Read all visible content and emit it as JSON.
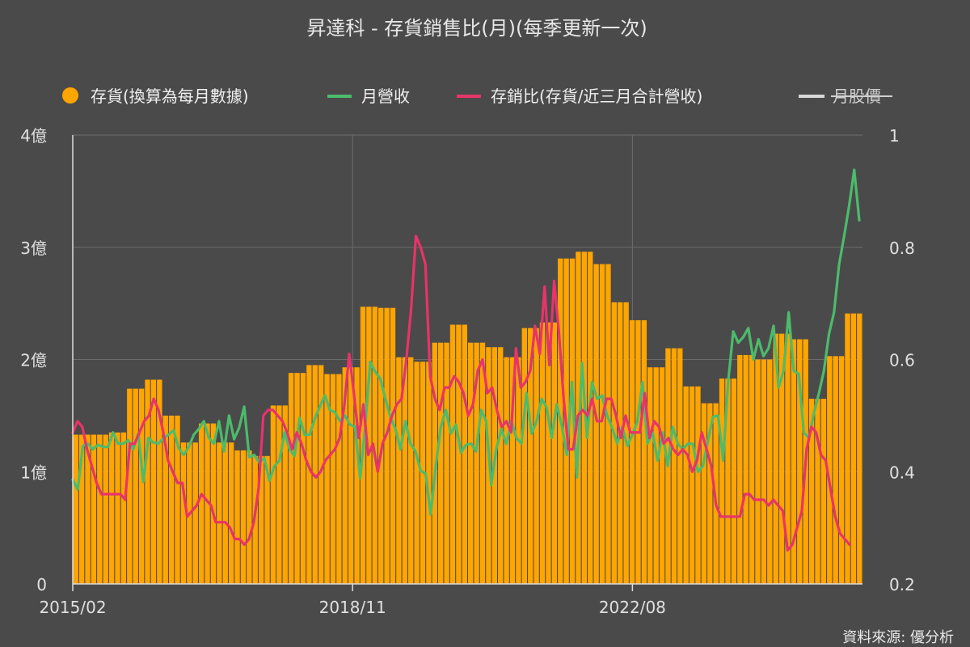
{
  "chart_data": {
    "type": "bar+line",
    "title": "昇達科 - 存貨銷售比(月)(每季更新一次)",
    "source": "資料來源: 優分析",
    "legend": {
      "position": "top",
      "items": [
        {
          "label": "存貨(換算為每月數據)",
          "color": "#ffa500",
          "marker": "dot"
        },
        {
          "label": "月營收",
          "color": "#4cbb6c",
          "marker": "line"
        },
        {
          "label": "存銷比(存貨/近三月合計營收)",
          "color": "#e8336b",
          "marker": "line"
        },
        {
          "label": "月股價",
          "color": "#d8d8d8",
          "marker": "line",
          "hidden": true
        }
      ]
    },
    "x_start": "2015/02",
    "x_end": "2025/09",
    "x_tick_labels": [
      "2015/02",
      "2018/11",
      "2022/08"
    ],
    "y_left": {
      "ticks": [
        0,
        1,
        2,
        3,
        4
      ],
      "tick_labels": [
        "0",
        "1億",
        "2億",
        "3億",
        "4億"
      ],
      "lim": [
        0,
        4
      ],
      "unit": "億"
    },
    "y_right": {
      "ticks": [
        0.2,
        0.4,
        0.6,
        0.8,
        1.0
      ],
      "tick_labels": [
        "0.2",
        "0.4",
        "0.6",
        "0.8",
        "1"
      ],
      "lim": [
        0.2,
        1.0
      ]
    },
    "grid": true,
    "series": {
      "inventory_quarterly_yi": [
        1.33,
        1.33,
        1.35,
        1.74,
        1.82,
        1.5,
        1.26,
        1.43,
        1.26,
        1.19,
        1.14,
        1.59,
        1.88,
        1.95,
        1.87,
        1.93,
        2.47,
        2.46,
        2.02,
        1.98,
        2.15,
        2.31,
        2.15,
        2.11,
        2.02,
        2.28,
        2.33,
        2.9,
        2.96,
        2.85,
        2.51,
        2.35,
        1.93,
        2.1,
        1.76,
        1.61,
        1.83,
        2.04,
        2.0,
        2.23,
        2.18,
        1.65,
        2.03,
        2.41
      ],
      "revenue_yi": [
        0.93,
        0.84,
        1.23,
        1.25,
        1.2,
        1.24,
        1.22,
        1.22,
        1.35,
        1.25,
        1.25,
        1.28,
        1.2,
        1.34,
        0.91,
        1.3,
        1.26,
        1.25,
        1.3,
        1.33,
        1.37,
        1.21,
        1.15,
        1.22,
        1.33,
        1.38,
        1.45,
        1.3,
        1.25,
        1.45,
        1.18,
        1.5,
        1.29,
        1.39,
        1.58,
        1.13,
        1.15,
        1.08,
        1.12,
        0.92,
        1.05,
        1.1,
        1.35,
        1.2,
        1.14,
        1.48,
        1.33,
        1.33,
        1.47,
        1.58,
        1.68,
        1.55,
        1.53,
        1.45,
        1.5,
        1.42,
        1.4,
        0.94,
        1.4,
        1.98,
        1.89,
        1.83,
        1.65,
        1.49,
        1.38,
        1.2,
        1.45,
        1.25,
        1.18,
        1.01,
        0.98,
        0.62,
        1.05,
        1.4,
        1.55,
        1.34,
        1.42,
        1.17,
        1.24,
        1.25,
        1.18,
        1.55,
        1.45,
        0.88,
        1.2,
        1.38,
        1.25,
        1.45,
        1.3,
        1.25,
        1.7,
        1.34,
        1.45,
        1.65,
        1.57,
        1.3,
        1.6,
        1.41,
        1.15,
        1.8,
        0.95,
        1.97,
        1.3,
        1.8,
        1.65,
        1.68,
        1.5,
        1.39,
        1.25,
        1.4,
        1.23,
        1.33,
        1.45,
        1.8,
        1.25,
        1.35,
        1.1,
        1.35,
        1.05,
        1.4,
        1.25,
        1.2,
        1.25,
        1.25,
        1.0,
        1.05,
        1.28,
        1.49,
        1.5,
        1.1,
        1.8,
        2.25,
        2.15,
        2.2,
        2.28,
        2.0,
        2.18,
        2.03,
        2.1,
        2.3,
        1.75,
        1.9,
        2.42,
        1.9,
        1.87,
        1.35,
        1.3,
        1.52,
        1.7,
        1.9,
        2.23,
        2.42,
        2.85,
        3.1,
        3.37,
        3.69,
        3.24
      ],
      "ratio": [
        0.47,
        0.49,
        0.48,
        0.44,
        0.41,
        0.38,
        0.36,
        0.36,
        0.36,
        0.36,
        0.36,
        0.35,
        0.45,
        0.45,
        0.47,
        0.49,
        0.5,
        0.53,
        0.51,
        0.47,
        0.42,
        0.4,
        0.38,
        0.38,
        0.32,
        0.33,
        0.34,
        0.36,
        0.35,
        0.34,
        0.31,
        0.31,
        0.31,
        0.3,
        0.28,
        0.28,
        0.27,
        0.28,
        0.31,
        0.37,
        0.5,
        0.51,
        0.51,
        0.5,
        0.49,
        0.47,
        0.44,
        0.47,
        0.45,
        0.42,
        0.4,
        0.39,
        0.4,
        0.42,
        0.43,
        0.44,
        0.46,
        0.52,
        0.61,
        0.54,
        0.46,
        0.52,
        0.43,
        0.45,
        0.4,
        0.45,
        0.47,
        0.5,
        0.52,
        0.53,
        0.6,
        0.69,
        0.82,
        0.8,
        0.77,
        0.57,
        0.53,
        0.51,
        0.55,
        0.55,
        0.57,
        0.56,
        0.54,
        0.5,
        0.52,
        0.58,
        0.6,
        0.54,
        0.55,
        0.51,
        0.48,
        0.49,
        0.47,
        0.62,
        0.55,
        0.56,
        0.58,
        0.66,
        0.61,
        0.73,
        0.59,
        0.74,
        0.65,
        0.53,
        0.44,
        0.44,
        0.5,
        0.51,
        0.5,
        0.53,
        0.49,
        0.49,
        0.53,
        0.53,
        0.5,
        0.46,
        0.5,
        0.47,
        0.47,
        0.47,
        0.54,
        0.46,
        0.49,
        0.48,
        0.45,
        0.46,
        0.44,
        0.43,
        0.44,
        0.43,
        0.4,
        0.42,
        0.47,
        0.44,
        0.41,
        0.34,
        0.32,
        0.32,
        0.32,
        0.32,
        0.32,
        0.36,
        0.36,
        0.35,
        0.35,
        0.35,
        0.34,
        0.35,
        0.34,
        0.33,
        0.26,
        0.27,
        0.3,
        0.33,
        0.44,
        0.48,
        0.47,
        0.43,
        0.42,
        0.37,
        0.32,
        0.29,
        0.28,
        0.27
      ]
    }
  }
}
